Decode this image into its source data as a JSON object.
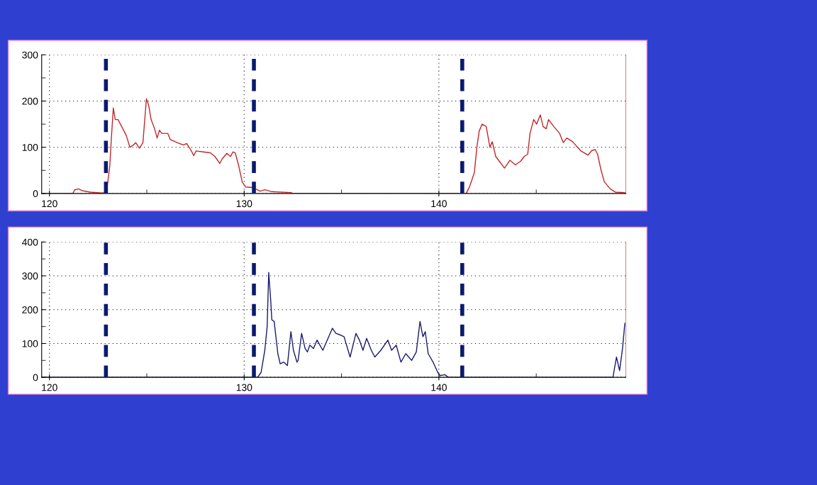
{
  "chart_data": [
    {
      "type": "line",
      "xlim": [
        119.6,
        149.6
      ],
      "ylim": [
        0,
        300
      ],
      "xticks": [
        120,
        {
          "value": 125,
          "label": null
        },
        130,
        {
          "value": 135,
          "label": null
        },
        140,
        {
          "value": 145,
          "label": null
        }
      ],
      "yticks": [
        0,
        {
          "value": 50,
          "label": null
        },
        100,
        {
          "value": 150,
          "label": null
        },
        200,
        {
          "value": 250,
          "label": null
        },
        300
      ],
      "grid": true,
      "line_style": "solid",
      "ref_lines": [
        {
          "axis": "x",
          "value": 122.9,
          "color": "#0a1a6e",
          "line_style": "dashed"
        },
        {
          "axis": "x",
          "value": 130.5,
          "color": "#0a1a6e",
          "line_style": "dashed"
        },
        {
          "axis": "x",
          "value": 141.2,
          "color": "#0a1a6e",
          "line_style": "dashed"
        }
      ],
      "series": [
        {
          "color": "#c0282a",
          "x": [
            119.6,
            121.2,
            121.3,
            121.5,
            121.7,
            122.1,
            122.7,
            122.86,
            122.98,
            123.1,
            123.18,
            123.28,
            123.38,
            123.52,
            123.77,
            123.95,
            124.13,
            124.31,
            124.43,
            124.62,
            124.8,
            124.98,
            125.1,
            125.22,
            125.4,
            125.53,
            125.65,
            125.77,
            126.08,
            126.2,
            126.56,
            126.87,
            127.05,
            127.29,
            127.41,
            127.53,
            127.9,
            128.26,
            128.5,
            128.75,
            128.87,
            129.11,
            129.3,
            129.42,
            129.54,
            129.72,
            129.9,
            130.08,
            130.45,
            130.81,
            131.06,
            131.42,
            132.4,
            132.5,
            141.4,
            141.58,
            141.82,
            141.95,
            142.07,
            142.22,
            142.43,
            142.62,
            142.74,
            142.92,
            143.1,
            143.37,
            143.65,
            143.93,
            144.2,
            144.38,
            144.56,
            144.68,
            144.87,
            145.02,
            145.21,
            145.35,
            145.51,
            145.63,
            145.9,
            146.2,
            146.39,
            146.57,
            146.87,
            147.12,
            147.3,
            147.66,
            147.85,
            148.03,
            148.15,
            148.33,
            148.5,
            148.8,
            149.06,
            149.55
          ],
          "values": [
            0,
            0,
            8,
            10,
            6,
            3,
            1,
            2,
            20,
            60,
            120,
            185,
            160,
            160,
            140,
            125,
            100,
            105,
            110,
            98,
            110,
            205,
            190,
            160,
            140,
            120,
            137,
            130,
            130,
            117,
            110,
            105,
            108,
            92,
            82,
            92,
            90,
            88,
            80,
            65,
            75,
            87,
            80,
            90,
            88,
            60,
            25,
            14,
            13,
            5,
            8,
            4,
            2,
            0,
            0,
            15,
            45,
            100,
            135,
            150,
            145,
            100,
            112,
            80,
            70,
            55,
            72,
            62,
            70,
            80,
            85,
            130,
            160,
            150,
            170,
            145,
            140,
            160,
            145,
            130,
            110,
            120,
            112,
            100,
            92,
            83,
            93,
            95,
            85,
            50,
            25,
            10,
            3,
            2
          ]
        }
      ]
    },
    {
      "type": "line",
      "xlim": [
        119.6,
        149.6
      ],
      "ylim": [
        0,
        400
      ],
      "xticks": [
        120,
        {
          "value": 125,
          "label": null
        },
        130,
        {
          "value": 135,
          "label": null
        },
        140,
        {
          "value": 145,
          "label": null
        }
      ],
      "yticks": [
        0,
        {
          "value": 50,
          "label": null
        },
        100,
        {
          "value": 150,
          "label": null
        },
        200,
        {
          "value": 250,
          "label": null
        },
        300,
        {
          "value": 350,
          "label": null
        },
        400
      ],
      "grid": true,
      "line_style": "solid",
      "ref_lines": [
        {
          "axis": "x",
          "value": 122.9,
          "color": "#0a1a6e",
          "line_style": "dashed"
        },
        {
          "axis": "x",
          "value": 130.5,
          "color": "#0a1a6e",
          "line_style": "dashed"
        },
        {
          "axis": "x",
          "value": 141.2,
          "color": "#0a1a6e",
          "line_style": "dashed"
        }
      ],
      "series": [
        {
          "color": "#1a1a6e",
          "x": [
            119.6,
            130.4,
            130.69,
            130.87,
            131.06,
            131.18,
            131.26,
            131.36,
            131.42,
            131.54,
            131.73,
            131.85,
            132.03,
            132.22,
            132.4,
            132.53,
            132.71,
            132.77,
            132.95,
            133.13,
            133.25,
            133.37,
            133.56,
            133.74,
            134.04,
            134.34,
            134.53,
            134.71,
            134.95,
            135.13,
            135.44,
            135.74,
            135.92,
            136.1,
            136.29,
            136.53,
            136.71,
            137.02,
            137.38,
            137.57,
            137.81,
            138.05,
            138.3,
            138.6,
            138.84,
            139.03,
            139.18,
            139.3,
            139.45,
            139.7,
            139.94,
            140.06,
            140.3,
            140.49,
            148.94,
            149.12,
            149.28,
            149.43,
            149.55
          ],
          "values": [
            0,
            0,
            0,
            15,
            80,
            150,
            310,
            230,
            170,
            165,
            70,
            40,
            45,
            35,
            135,
            80,
            45,
            50,
            130,
            85,
            75,
            95,
            85,
            110,
            80,
            120,
            145,
            130,
            125,
            120,
            60,
            130,
            110,
            80,
            115,
            80,
            60,
            80,
            110,
            80,
            95,
            45,
            70,
            50,
            75,
            165,
            120,
            135,
            70,
            45,
            15,
            5,
            8,
            0,
            0,
            60,
            20,
            85,
            160
          ]
        }
      ]
    }
  ]
}
